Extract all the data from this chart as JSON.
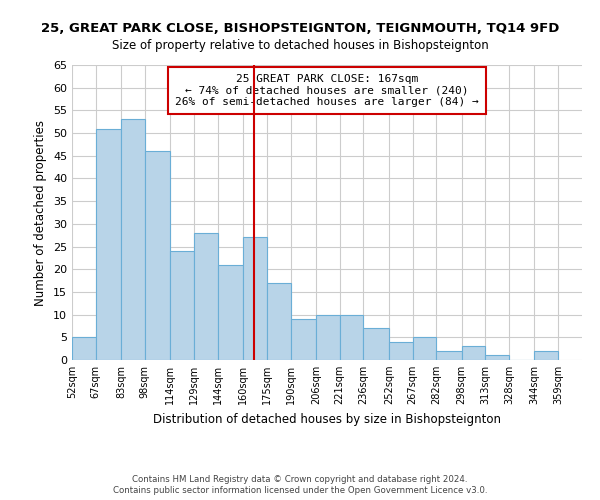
{
  "title": "25, GREAT PARK CLOSE, BISHOPSTEIGNTON, TEIGNMOUTH, TQ14 9FD",
  "subtitle": "Size of property relative to detached houses in Bishopsteignton",
  "xlabel": "Distribution of detached houses by size in Bishopsteignton",
  "ylabel": "Number of detached properties",
  "bar_left_edges": [
    52,
    67,
    83,
    98,
    114,
    129,
    144,
    160,
    175,
    190,
    206,
    221,
    236,
    252,
    267,
    282,
    298,
    313,
    328,
    344
  ],
  "bar_widths": [
    15,
    16,
    15,
    16,
    15,
    15,
    16,
    15,
    15,
    16,
    15,
    15,
    16,
    15,
    15,
    16,
    15,
    15,
    16,
    15
  ],
  "bar_heights": [
    5,
    51,
    53,
    46,
    24,
    28,
    21,
    27,
    17,
    9,
    10,
    10,
    7,
    4,
    5,
    2,
    3,
    1,
    0,
    2
  ],
  "tick_labels": [
    "52sqm",
    "67sqm",
    "83sqm",
    "98sqm",
    "114sqm",
    "129sqm",
    "144sqm",
    "160sqm",
    "175sqm",
    "190sqm",
    "206sqm",
    "221sqm",
    "236sqm",
    "252sqm",
    "267sqm",
    "282sqm",
    "298sqm",
    "313sqm",
    "328sqm",
    "344sqm",
    "359sqm"
  ],
  "tick_positions": [
    52,
    67,
    83,
    98,
    114,
    129,
    144,
    160,
    175,
    190,
    206,
    221,
    236,
    252,
    267,
    282,
    298,
    313,
    328,
    344,
    359
  ],
  "bar_color": "#b8d4e8",
  "bar_edge_color": "#6aaed6",
  "vline_x": 167,
  "vline_color": "#cc0000",
  "annotation_line1": "25 GREAT PARK CLOSE: 167sqm",
  "annotation_line2": "← 74% of detached houses are smaller (240)",
  "annotation_line3": "26% of semi-detached houses are larger (84) →",
  "ylim": [
    0,
    65
  ],
  "xlim": [
    52,
    374
  ],
  "yticks": [
    0,
    5,
    10,
    15,
    20,
    25,
    30,
    35,
    40,
    45,
    50,
    55,
    60,
    65
  ],
  "footer1": "Contains HM Land Registry data © Crown copyright and database right 2024.",
  "footer2": "Contains public sector information licensed under the Open Government Licence v3.0.",
  "background_color": "#ffffff",
  "grid_color": "#cccccc",
  "figsize": [
    6.0,
    5.0
  ],
  "dpi": 100
}
